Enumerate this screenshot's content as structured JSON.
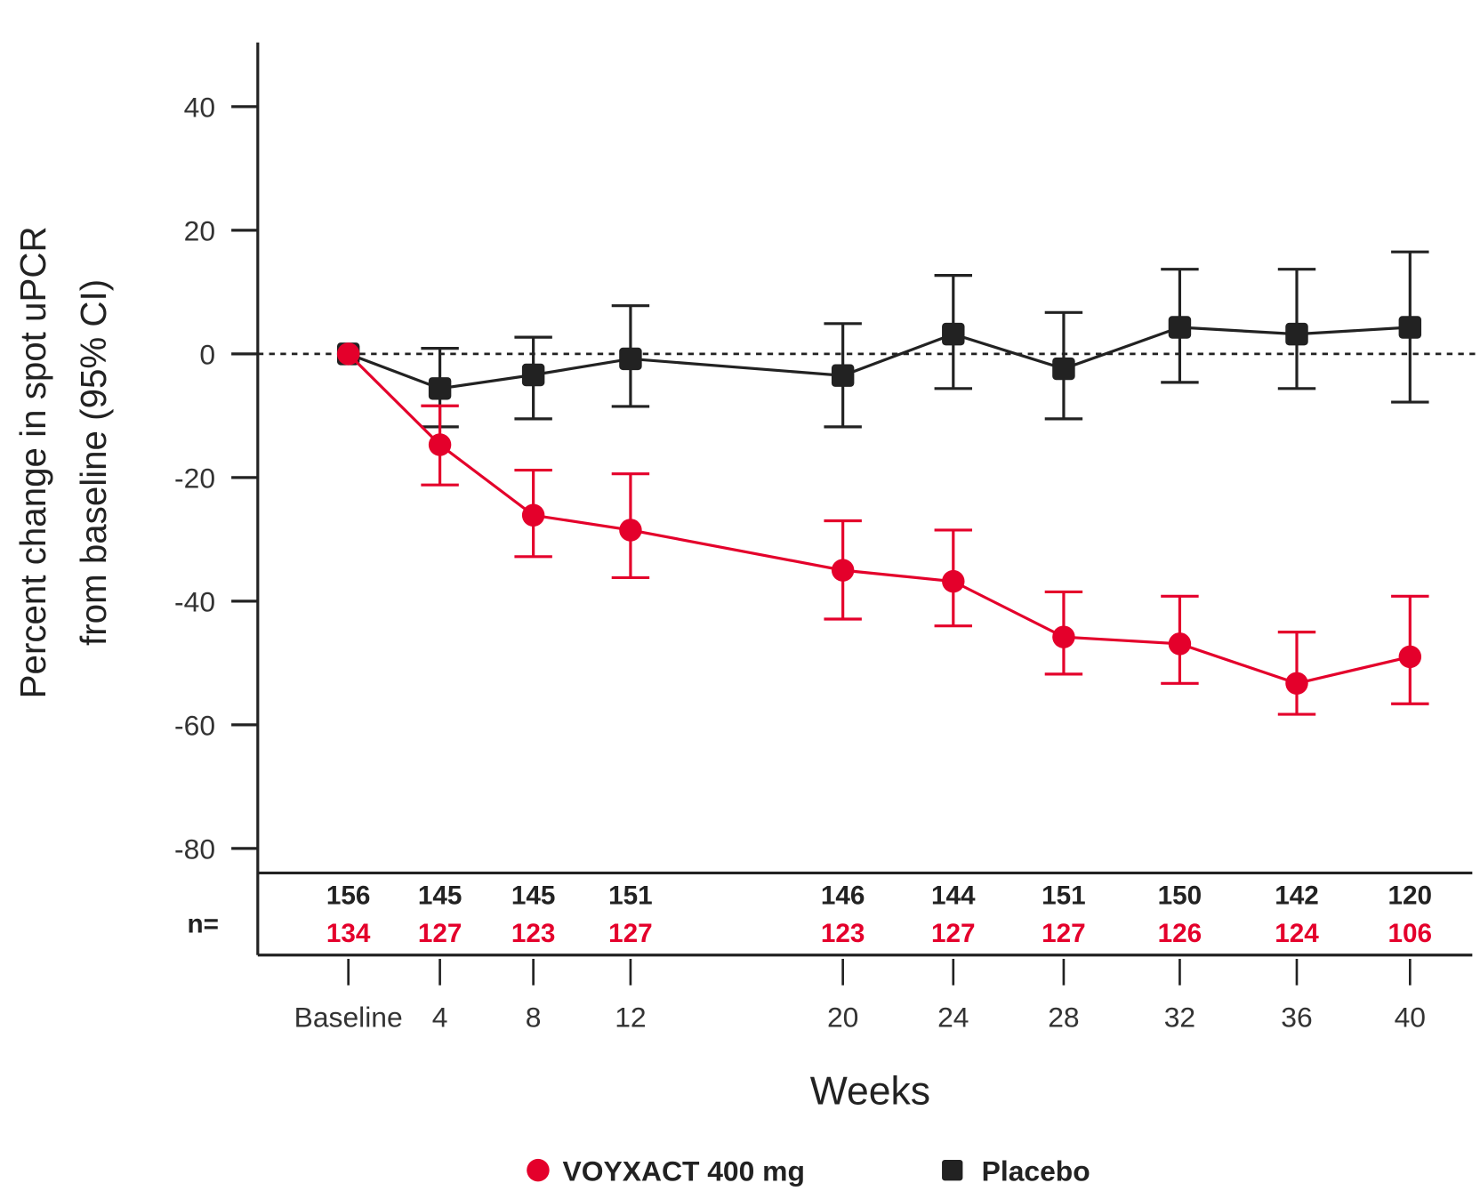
{
  "chart_data": {
    "type": "line",
    "title": "",
    "xlabel": "Weeks",
    "ylabel_line1": "Percent change in spot uPCR",
    "ylabel_line2": "from baseline (95% CI)",
    "ylim": [
      -80,
      50
    ],
    "yticks": [
      "40",
      "20",
      "0",
      "-20",
      "-40",
      "-60",
      "-80"
    ],
    "ytick_values": [
      40,
      20,
      0,
      -20,
      -40,
      -60,
      -80
    ],
    "reference_line": 0,
    "x_weeks": [
      0,
      4,
      8,
      12,
      20,
      24,
      28,
      32,
      36,
      40
    ],
    "xtick_labels": [
      "Baseline",
      "4",
      "8",
      "12",
      "20",
      "24",
      "28",
      "32",
      "36",
      "40"
    ],
    "legend_placement": "bottom",
    "n_label": "n=",
    "series": [
      {
        "name": "VOYXACT 400 mg",
        "color": "#e4002b",
        "marker": "circle",
        "values": [
          0,
          -14.7,
          -26.1,
          -28.5,
          -35.0,
          -36.8,
          -45.8,
          -46.9,
          -53.3,
          -49.0
        ],
        "ci_upper": [
          0,
          -8.4,
          -18.8,
          -19.4,
          -27.0,
          -28.5,
          -38.5,
          -39.2,
          -45.0,
          -39.2
        ],
        "ci_lower": [
          0,
          -21.2,
          -32.8,
          -36.2,
          -42.9,
          -44.0,
          -51.8,
          -53.3,
          -58.3,
          -56.6
        ],
        "n": [
          "134",
          "127",
          "123",
          "127",
          "123",
          "127",
          "127",
          "126",
          "124",
          "106"
        ]
      },
      {
        "name": "Placebo",
        "color": "#222222",
        "marker": "square",
        "values": [
          0,
          -5.6,
          -3.4,
          -0.8,
          -3.5,
          3.2,
          -2.4,
          4.3,
          3.2,
          4.3
        ],
        "ci_upper": [
          0,
          0.9,
          2.7,
          7.8,
          4.9,
          12.7,
          6.7,
          13.7,
          13.7,
          16.5
        ],
        "ci_lower": [
          0,
          -11.8,
          -10.5,
          -8.5,
          -11.8,
          -5.6,
          -10.5,
          -4.6,
          -5.6,
          -7.8
        ],
        "n": [
          "156",
          "145",
          "145",
          "151",
          "146",
          "144",
          "151",
          "150",
          "142",
          "120"
        ]
      }
    ]
  }
}
